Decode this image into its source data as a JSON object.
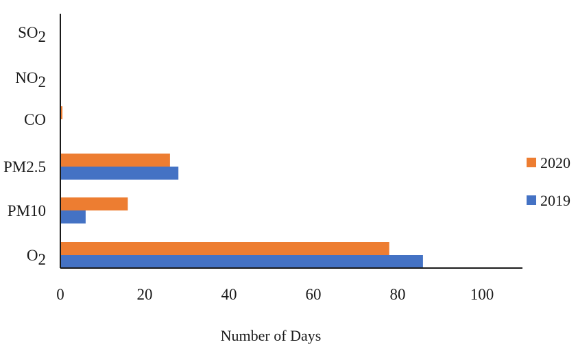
{
  "chart_data": {
    "type": "bar",
    "orientation": "horizontal",
    "title": "",
    "xlabel": "Number of Days",
    "ylabel": "",
    "xlim": [
      0,
      110
    ],
    "xticks": [
      "0",
      "20",
      "40",
      "60",
      "80",
      "100"
    ],
    "categories": [
      {
        "main": "SO",
        "sub": "2"
      },
      {
        "main": "NO",
        "sub": "2"
      },
      {
        "main": "CO",
        "sub": ""
      },
      {
        "main": "PM2.5",
        "sub": ""
      },
      {
        "main": "PM10",
        "sub": ""
      },
      {
        "main": "O",
        "sub": "2"
      }
    ],
    "series": [
      {
        "name": "2020",
        "color": "#ED7D31",
        "values": [
          0,
          0,
          0.5,
          26,
          16,
          78
        ]
      },
      {
        "name": "2019",
        "color": "#4472C4",
        "values": [
          0,
          0,
          0,
          28,
          6,
          86
        ]
      }
    ],
    "grid": false,
    "legend_position": "right"
  }
}
